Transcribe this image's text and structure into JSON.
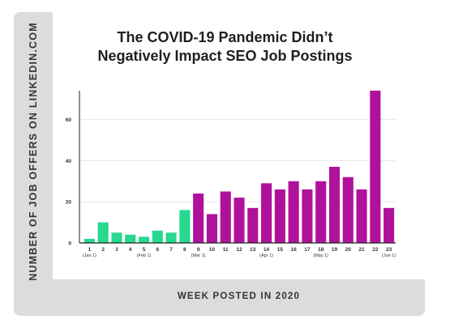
{
  "chart_data": {
    "type": "bar",
    "title": "The COVID-19 Pandemic Didn’t Negatively Impact SEO Job Postings",
    "title_lines": [
      "The COVID-19 Pandemic Didn’t",
      "Negatively Impact SEO Job Postings"
    ],
    "xlabel": "WEEK POSTED IN 2020",
    "ylabel": "NUMBER OF JOB OFFERS ON LINKEDIN.COM",
    "categories": [
      "1",
      "2",
      "3",
      "4",
      "5",
      "6",
      "7",
      "8",
      "9",
      "10",
      "11",
      "12",
      "13",
      "14",
      "15",
      "16",
      "17",
      "18",
      "19",
      "20",
      "21",
      "22",
      "23"
    ],
    "category_sublabels": {
      "1": "(Jan 1)",
      "5": "(Feb 1)",
      "9": "(Mar 1)",
      "14": "(Apr 1)",
      "18": "(May 1)",
      "23": "(Jun 1)"
    },
    "values": [
      2,
      10,
      5,
      4,
      3,
      6,
      5,
      16,
      24,
      14,
      25,
      22,
      17,
      29,
      26,
      30,
      26,
      30,
      37,
      32,
      26,
      74,
      17
    ],
    "bar_colors": [
      "#27d890",
      "#27d890",
      "#27d890",
      "#27d890",
      "#27d890",
      "#27d890",
      "#27d890",
      "#27d890",
      "#b0119b",
      "#b0119b",
      "#b0119b",
      "#b0119b",
      "#b0119b",
      "#b0119b",
      "#b0119b",
      "#b0119b",
      "#b0119b",
      "#b0119b",
      "#b0119b",
      "#b0119b",
      "#b0119b",
      "#b0119b",
      "#b0119b"
    ],
    "yticks": [
      0,
      20,
      40,
      60
    ],
    "ylim": [
      0,
      74
    ],
    "grid": true
  },
  "colors": {
    "before": "#27d890",
    "after": "#b0119b",
    "grid": "#e6e6e6",
    "axis": "#222222",
    "band": "#dcdcdc"
  }
}
